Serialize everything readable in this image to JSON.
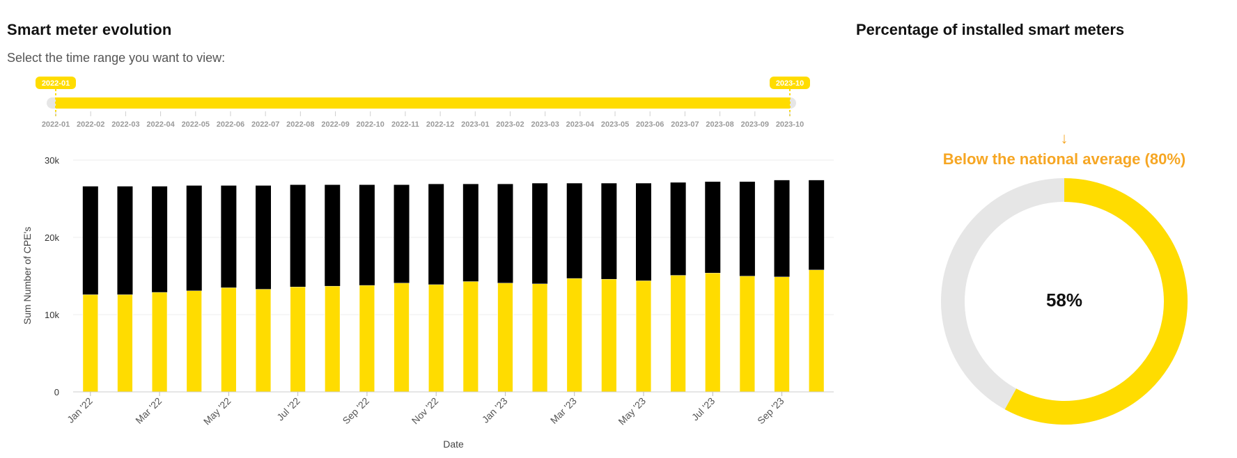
{
  "left_title": "Smart meter evolution",
  "subtitle": "Select the time range you want to view:",
  "right_title": "Percentage of installed smart meters",
  "colors": {
    "accent": "#FFDC00",
    "dark": "#000000",
    "track": "#e6e6e6",
    "orange": "#f6a623"
  },
  "range_slider": {
    "start_label": "2022-01",
    "end_label": "2023-10",
    "ticks": [
      "2022-01",
      "2022-02",
      "2022-03",
      "2022-04",
      "2022-05",
      "2022-06",
      "2022-07",
      "2022-08",
      "2022-09",
      "2022-10",
      "2022-11",
      "2022-12",
      "2023-01",
      "2023-02",
      "2023-03",
      "2023-04",
      "2023-05",
      "2023-06",
      "2023-07",
      "2023-08",
      "2023-09",
      "2023-10"
    ]
  },
  "chart_data": {
    "type": "bar",
    "stacked": true,
    "categories": [
      "Jan '22",
      "Feb '22",
      "Mar '22",
      "Apr '22",
      "May '22",
      "Jun '22",
      "Jul '22",
      "Aug '22",
      "Sep '22",
      "Oct '22",
      "Nov '22",
      "Dec '22",
      "Jan '23",
      "Feb '23",
      "Mar '23",
      "Apr '23",
      "May '23",
      "Jun '23",
      "Jul '23",
      "Aug '23",
      "Sep '23",
      "Oct '23"
    ],
    "x_tick_labels": [
      "Jan '22",
      "Mar '22",
      "May '22",
      "Jul '22",
      "Sep '22",
      "Nov '22",
      "Jan '23",
      "Mar '23",
      "May '23",
      "Jul '23",
      "Sep '23"
    ],
    "series": [
      {
        "color": "#FFDC00",
        "values": [
          12600,
          12600,
          12900,
          13100,
          13500,
          13300,
          13600,
          13700,
          13800,
          14100,
          13900,
          14300,
          14100,
          14000,
          14700,
          14600,
          14400,
          15100,
          15400,
          15000,
          14900,
          15800
        ]
      },
      {
        "color": "#000000",
        "values": [
          14000,
          14000,
          13700,
          13600,
          13200,
          13400,
          13200,
          13100,
          13000,
          12700,
          13000,
          12600,
          12800,
          13000,
          12300,
          12400,
          12600,
          12000,
          11800,
          12200,
          12500,
          11600
        ]
      }
    ],
    "xlabel": "Date",
    "ylabel": "Sum Number of CPE's",
    "ylim": [
      0,
      30000
    ],
    "yticks": [
      0,
      10000,
      20000,
      30000
    ],
    "ytick_labels": [
      "0",
      "10k",
      "20k",
      "30k"
    ],
    "grid": true
  },
  "donut": {
    "value": 0.58,
    "center_label": "58%",
    "arrow": "↓",
    "note": "Below the national average (80%)"
  }
}
